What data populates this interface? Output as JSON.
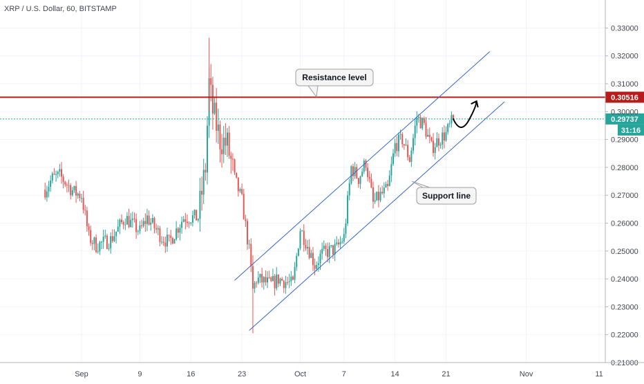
{
  "header": {
    "title": "XRP / U.S. Dollar, 60, BITSTAMP"
  },
  "colors": {
    "up": "#26a69a",
    "down": "#ef5350",
    "resistance": "#b71c1c",
    "last_price": "#26a69a",
    "channel": "#3366cc",
    "grid": "#f0f3fa",
    "axis_text": "#434651"
  },
  "chart_data": {
    "type": "candlestick",
    "title": "XRP / U.S. Dollar, 60, BITSTAMP",
    "x_ticks": [
      "Sep",
      "9",
      "16",
      "23",
      "Oct",
      "7",
      "14",
      "21",
      "Nov",
      "11"
    ],
    "y_ticks": [
      "0.33000",
      "0.32000",
      "0.31000",
      "0.30000",
      "0.29000",
      "0.28000",
      "0.27000",
      "0.26000",
      "0.25000",
      "0.24000",
      "0.23000",
      "0.22000",
      "0.21000"
    ],
    "ylim": [
      0.21,
      0.33
    ],
    "grid": true,
    "series": [
      {
        "price_path": [
          [
            "Aug 27",
            0.272
          ],
          [
            "Aug 28",
            0.276
          ],
          [
            "Aug 29",
            0.277
          ],
          [
            "Aug 30",
            0.274
          ],
          [
            "Aug 31",
            0.271
          ],
          [
            "Sep 1",
            0.27
          ],
          [
            "Sep 2",
            0.255
          ],
          [
            "Sep 3",
            0.252
          ],
          [
            "Sep 5",
            0.254
          ],
          [
            "Sep 7",
            0.262
          ],
          [
            "Sep 9",
            0.257
          ],
          [
            "Sep 10",
            0.262
          ],
          [
            "Sep 12",
            0.255
          ],
          [
            "Sep 13",
            0.253
          ],
          [
            "Sep 15",
            0.262
          ],
          [
            "Sep 16",
            0.262
          ],
          [
            "Sep 17",
            0.262
          ],
          [
            "Sep 18",
            0.28
          ],
          [
            "Sep 18 12h",
            0.31
          ],
          [
            "Sep 19",
            0.3
          ],
          [
            "Sep 20",
            0.29
          ],
          [
            "Sep 21",
            0.288
          ],
          [
            "Sep 22",
            0.276
          ],
          [
            "Sep 23",
            0.268
          ],
          [
            "Sep 24",
            0.25
          ],
          [
            "Sep 24 12h",
            0.236
          ],
          [
            "Sep 25",
            0.24
          ],
          [
            "Sep 27",
            0.238
          ],
          [
            "Sep 28",
            0.24
          ],
          [
            "Sep 30",
            0.238
          ],
          [
            "Oct 1",
            0.258
          ],
          [
            "Oct 2",
            0.252
          ],
          [
            "Oct 3",
            0.245
          ],
          [
            "Oct 4",
            0.249
          ],
          [
            "Oct 6",
            0.251
          ],
          [
            "Oct 7",
            0.255
          ],
          [
            "Oct 8",
            0.28
          ],
          [
            "Oct 9",
            0.276
          ],
          [
            "Oct 10",
            0.282
          ],
          [
            "Oct 11",
            0.267
          ],
          [
            "Oct 12",
            0.27
          ],
          [
            "Oct 13",
            0.272
          ],
          [
            "Oct 14",
            0.288
          ],
          [
            "Oct 15",
            0.29
          ],
          [
            "Oct 16",
            0.283
          ],
          [
            "Oct 17",
            0.298
          ],
          [
            "Oct 18",
            0.295
          ],
          [
            "Oct 19",
            0.287
          ],
          [
            "Oct 20",
            0.29
          ],
          [
            "Oct 21",
            0.292
          ],
          [
            "Oct 22",
            0.2974
          ]
        ]
      }
    ],
    "horizontal_lines": [
      {
        "label": "0.30516",
        "value": 0.30516,
        "color": "#b71c1c"
      },
      {
        "label": "0.29737",
        "value": 0.29737,
        "color": "#26a69a",
        "countdown": "31:16"
      }
    ],
    "annotations": [
      {
        "text": "Resistance level"
      },
      {
        "text": "Support line"
      }
    ],
    "channel": {
      "upper": [
        [
          "Sep 22",
          0.2395
        ],
        [
          "Oct 27",
          0.3215
        ]
      ],
      "lower": [
        [
          "Sep 24",
          0.2215
        ],
        [
          "Oct 29",
          0.3035
        ]
      ]
    },
    "projection": "curved arrow up from 0.2950 to 0.3030 near Oct 22–24"
  }
}
